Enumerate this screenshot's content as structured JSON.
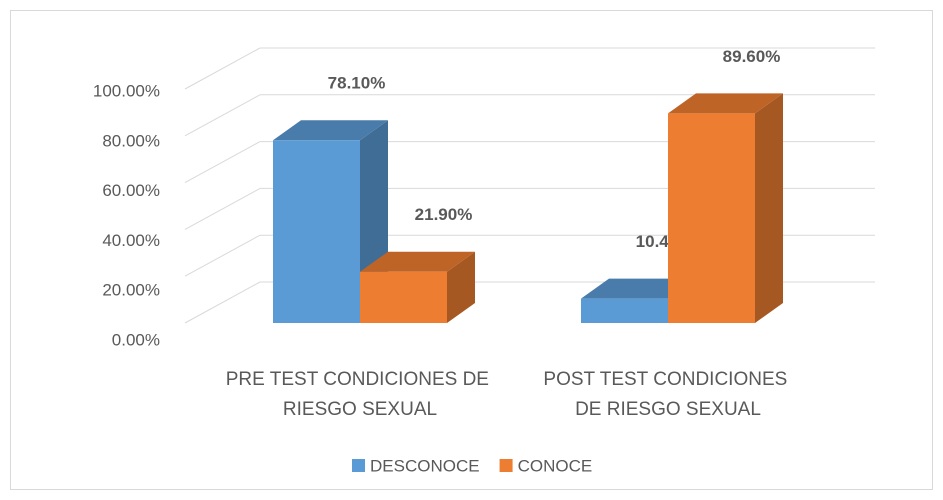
{
  "chart_data": {
    "type": "bar3d",
    "categories": [
      "PRE TEST CONDICIONES DE RIESGO SEXUAL",
      "POST TEST CONDICIONES DE RIESGO SEXUAL"
    ],
    "series": [
      {
        "name": "DESCONOCE",
        "color": "#5b9bd5",
        "values": [
          78.1,
          10.4
        ],
        "value_labels": [
          "78.10%",
          "10.40%"
        ]
      },
      {
        "name": "CONOCE",
        "color": "#ed7d31",
        "values": [
          21.9,
          89.6
        ],
        "value_labels": [
          "21.90%",
          "89.60%"
        ]
      }
    ],
    "ylim": [
      0,
      100
    ],
    "yticks": [
      {
        "value": 0,
        "label": "0.00%"
      },
      {
        "value": 20,
        "label": "20.00%"
      },
      {
        "value": 40,
        "label": "40.00%"
      },
      {
        "value": 60,
        "label": "60.00%"
      },
      {
        "value": 80,
        "label": "80.00%"
      },
      {
        "value": 100,
        "label": "100.00%"
      }
    ],
    "grid": true,
    "legend": "bottom"
  }
}
